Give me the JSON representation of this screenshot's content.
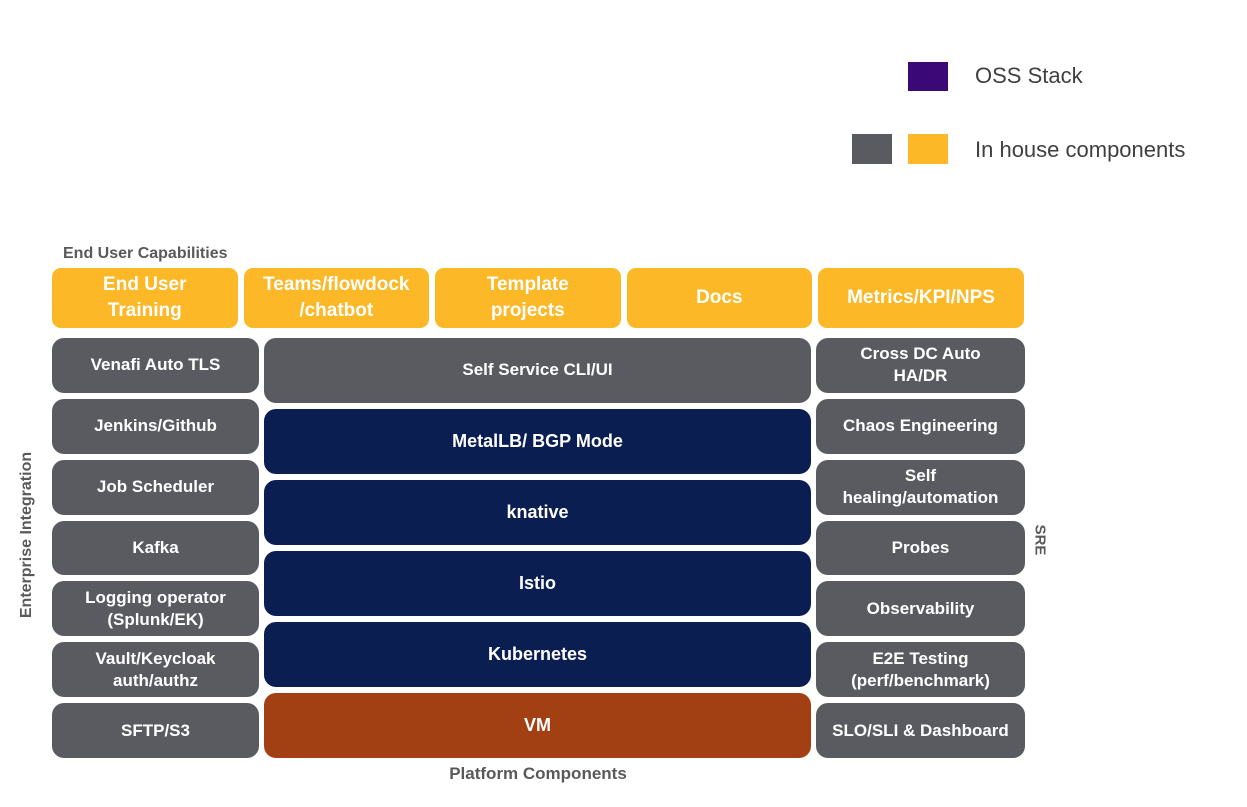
{
  "labels": {
    "top": "End User Capabilities",
    "bottom": "Platform Components",
    "left": "Enterprise Integration",
    "right": "SRE"
  },
  "legend": {
    "items": [
      {
        "label": "OSS Stack",
        "swatch_colors": [
          "#3B0878"
        ]
      },
      {
        "label": "In house components",
        "swatch_colors": [
          "#595B60",
          "#FCB826"
        ]
      }
    ]
  },
  "top_row": [
    {
      "label": "End User\nTraining",
      "type": "inhouse-orange"
    },
    {
      "label": "Teams/flowdock\n/chatbot",
      "type": "inhouse-orange"
    },
    {
      "label": "Template\nprojects",
      "type": "inhouse-orange"
    },
    {
      "label": "Docs",
      "type": "inhouse-orange"
    },
    {
      "label": "Metrics/KPI/NPS",
      "type": "inhouse-orange"
    }
  ],
  "left_column": [
    {
      "label": "Venafi Auto TLS",
      "type": "inhouse-gray"
    },
    {
      "label": "Jenkins/Github",
      "type": "inhouse-gray"
    },
    {
      "label": "Job Scheduler",
      "type": "inhouse-gray"
    },
    {
      "label": "Kafka",
      "type": "inhouse-gray"
    },
    {
      "label": "Logging operator\n(Splunk/EK)",
      "type": "inhouse-gray"
    },
    {
      "label": "Vault/Keycloak\nauth/authz",
      "type": "inhouse-gray"
    },
    {
      "label": "SFTP/S3",
      "type": "inhouse-gray"
    }
  ],
  "center_column": [
    {
      "label": "Self Service CLI/UI",
      "type": "inhouse-gray"
    },
    {
      "label": "MetalLB/ BGP Mode",
      "type": "oss-navy"
    },
    {
      "label": "knative",
      "type": "oss-navy"
    },
    {
      "label": "Istio",
      "type": "oss-navy"
    },
    {
      "label": "Kubernetes",
      "type": "oss-navy"
    },
    {
      "label": "VM",
      "type": "vm-rust"
    }
  ],
  "right_column": [
    {
      "label": "Cross DC Auto\nHA/DR",
      "type": "inhouse-gray"
    },
    {
      "label": "Chaos Engineering",
      "type": "inhouse-gray"
    },
    {
      "label": "Self\nhealing/automation",
      "type": "inhouse-gray"
    },
    {
      "label": "Probes",
      "type": "inhouse-gray"
    },
    {
      "label": "Observability",
      "type": "inhouse-gray"
    },
    {
      "label": "E2E Testing\n(perf/benchmark)",
      "type": "inhouse-gray"
    },
    {
      "label": "SLO/SLI & Dashboard",
      "type": "inhouse-gray"
    }
  ],
  "colors": {
    "oss_navy": "#0A1E52",
    "oss_purple": "#3B0878",
    "inhouse_gray": "#595B60",
    "inhouse_orange": "#FCB826",
    "vm_rust": "#A34013",
    "section_label_text": "#595959",
    "legend_text": "#3F3F3F",
    "box_text": "#FFFFFF",
    "background": "#FFFFFF"
  }
}
